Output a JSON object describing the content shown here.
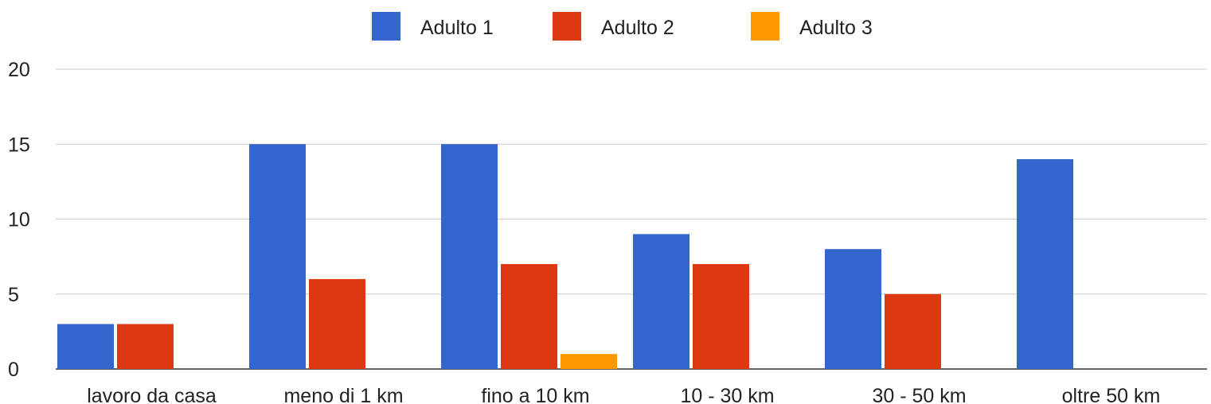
{
  "chart_data": {
    "type": "bar",
    "categories": [
      "lavoro da casa",
      "meno di 1 km",
      "fino a 10 km",
      "10 - 30 km",
      "30 - 50 km",
      "oltre 50 km"
    ],
    "series": [
      {
        "name": "Adulto 1",
        "color": "#3366cc",
        "values": [
          3,
          15,
          15,
          9,
          8,
          14
        ]
      },
      {
        "name": "Adulto 2",
        "color": "#dc3912",
        "values": [
          3,
          6,
          7,
          7,
          5,
          0
        ]
      },
      {
        "name": "Adulto 3",
        "color": "#ff9900",
        "values": [
          0,
          0,
          1,
          0,
          0,
          0
        ]
      }
    ],
    "ylim": [
      0,
      20
    ],
    "yticks": [
      0,
      5,
      10,
      15,
      20
    ],
    "grid": true,
    "legend_position": "top"
  }
}
